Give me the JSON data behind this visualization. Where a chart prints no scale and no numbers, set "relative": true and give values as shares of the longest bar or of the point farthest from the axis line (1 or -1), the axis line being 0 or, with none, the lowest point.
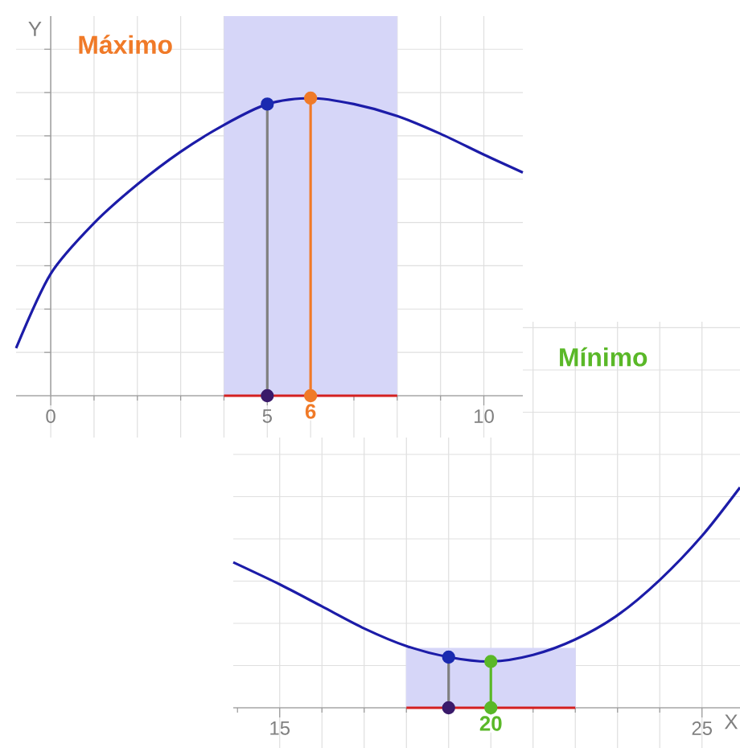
{
  "chart_data": [
    {
      "type": "line",
      "title": "Mínimo",
      "xlabel": "X",
      "relative": true,
      "grid": true,
      "xlim": [
        13.9,
        25.9
      ],
      "xticks": [
        15,
        {
          "value": 20,
          "label": null
        },
        25
      ],
      "tick_labels": "x",
      "annotations": [
        {
          "text": "20",
          "x": 20,
          "y": 0
        }
      ],
      "series": [
        {
          "type": "area",
          "marker": "none",
          "color": "#d6d6f8",
          "x": [
            18,
            22
          ],
          "values": [
            0.27,
            0.27
          ]
        },
        {
          "type": "line",
          "marker": "none",
          "color": "#1c1ca8",
          "x": [
            13.9,
            15,
            16,
            17,
            18,
            19,
            20,
            21,
            22,
            23,
            24,
            25,
            25.9
          ],
          "values": [
            0.66,
            0.56,
            0.46,
            0.36,
            0.28,
            0.23,
            0.21,
            0.24,
            0.31,
            0.42,
            0.58,
            0.78,
            1.0
          ]
        },
        {
          "type": "line",
          "marker": "none",
          "color": "#d42020",
          "x": [
            18,
            22
          ],
          "values": [
            0,
            0
          ]
        },
        {
          "type": "line",
          "marker": "none",
          "color": "#808080",
          "x": [
            19,
            19
          ],
          "values": [
            0,
            0.23
          ]
        },
        {
          "type": "line",
          "marker": "none",
          "color": "#5ab828",
          "x": [
            20,
            20
          ],
          "values": [
            0,
            0.21
          ]
        },
        {
          "type": "scatter",
          "color": "#1a2ab0",
          "x": [
            19
          ],
          "values": [
            0.23
          ]
        },
        {
          "type": "scatter",
          "color": "#5ab828",
          "x": [
            20,
            20
          ],
          "values": [
            0.21,
            0
          ]
        },
        {
          "type": "scatter",
          "color": "#3a1a6a",
          "x": [
            19
          ],
          "values": [
            0
          ]
        }
      ],
      "marker": "circle"
    },
    {
      "type": "line",
      "title": "Máximo",
      "ylabel": "Y",
      "relative": true,
      "grid": true,
      "xlim": [
        -0.8,
        10.9
      ],
      "xticks": [
        0,
        5,
        10
      ],
      "tick_labels": "x",
      "bands": [
        {
          "axis": "x",
          "from": 4,
          "to": 8,
          "color": "#d6d6f8"
        }
      ],
      "annotations": [
        {
          "text": "6",
          "x": 6,
          "y": 0
        }
      ],
      "series": [
        {
          "type": "line",
          "marker": "none",
          "color": "#1c1ca8",
          "x": [
            -0.8,
            0,
            1,
            2,
            3,
            4,
            5,
            6,
            7,
            8,
            9,
            10,
            10.9
          ],
          "values": [
            0.16,
            0.41,
            0.58,
            0.71,
            0.82,
            0.91,
            0.98,
            1.0,
            0.98,
            0.94,
            0.88,
            0.81,
            0.75
          ]
        },
        {
          "type": "line",
          "marker": "none",
          "color": "#d42020",
          "x": [
            4,
            8
          ],
          "values": [
            0,
            0
          ]
        },
        {
          "type": "line",
          "marker": "none",
          "color": "#808080",
          "x": [
            5,
            5
          ],
          "values": [
            0,
            0.98
          ]
        },
        {
          "type": "line",
          "marker": "none",
          "color": "#f07a28",
          "x": [
            6,
            6
          ],
          "values": [
            0,
            1.0
          ]
        },
        {
          "type": "scatter",
          "color": "#1a2ab0",
          "x": [
            5
          ],
          "values": [
            0.98
          ]
        },
        {
          "type": "scatter",
          "color": "#f07a28",
          "x": [
            6,
            6
          ],
          "values": [
            1.0,
            0
          ]
        },
        {
          "type": "scatter",
          "color": "#3a1a6a",
          "x": [
            5
          ],
          "values": [
            0
          ]
        }
      ],
      "marker": "circle"
    }
  ]
}
